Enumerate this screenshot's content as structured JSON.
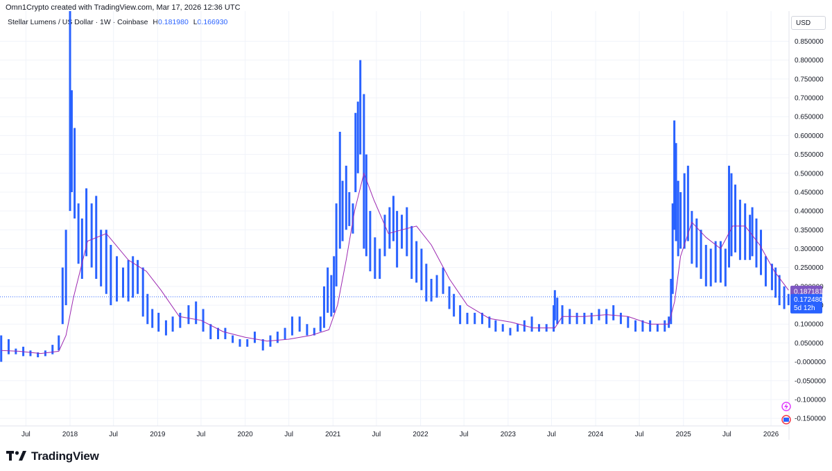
{
  "header": {
    "attribution": "Omn1Crypto created with TradingView.com, Mar 17, 2026 12:36 UTC",
    "symbol": "Stellar Lumens / US Dollar · 1W · Coinbase",
    "high_label": "H",
    "high_value": "0.181980",
    "low_label": "L",
    "low_value": "0.166930"
  },
  "currency": "USD",
  "brand": "TradingView",
  "colors": {
    "bar": "#2962ff",
    "ma_line": "#9c27b0",
    "grid": "#f0f3fa",
    "price_line": "#2962ff",
    "ma_label_bg": "#7e57c2"
  },
  "price_labels": {
    "ma": "0.187181",
    "last": "0.172480",
    "countdown": "5d 12h"
  },
  "chart_data": {
    "type": "bar",
    "style": "high-low weekly bars with moving average line",
    "x_ticks": [
      "Jul",
      "2018",
      "Jul",
      "2019",
      "Jul",
      "2020",
      "Jul",
      "2021",
      "Jul",
      "2022",
      "Jul",
      "2023",
      "Jul",
      "2024",
      "Jul",
      "2025",
      "Jul",
      "2026"
    ],
    "x_tick_dates": [
      "2017-07-01",
      "2018-01-01",
      "2018-07-01",
      "2019-01-01",
      "2019-07-01",
      "2020-01-01",
      "2020-07-01",
      "2021-01-01",
      "2021-07-01",
      "2022-01-01",
      "2022-07-01",
      "2023-01-01",
      "2023-07-01",
      "2024-01-01",
      "2024-07-01",
      "2025-01-01",
      "2025-07-01",
      "2026-01-01"
    ],
    "y_ticks": [
      "0.850000",
      "0.800000",
      "0.750000",
      "0.700000",
      "0.650000",
      "0.600000",
      "0.550000",
      "0.500000",
      "0.450000",
      "0.400000",
      "0.350000",
      "0.300000",
      "0.250000",
      "0.200000",
      "0.150000",
      "0.100000",
      "0.050000",
      "-0.000000",
      "-0.050000",
      "-0.100000",
      "-0.150000"
    ],
    "y_tick_values": [
      0.85,
      0.8,
      0.75,
      0.7,
      0.65,
      0.6,
      0.55,
      0.5,
      0.45,
      0.4,
      0.35,
      0.3,
      0.25,
      0.2,
      0.15,
      0.1,
      0.05,
      0.0,
      -0.05,
      -0.1,
      -0.15
    ],
    "x_range": [
      "2017-03-15",
      "2026-03-17"
    ],
    "ylim": [
      -0.17,
      0.93
    ],
    "grid": true,
    "last_price": 0.17248,
    "series": [
      {
        "kind": "high-low",
        "dates": [
          "2017-03-20",
          "2017-04-20",
          "2017-05-20",
          "2017-06-20",
          "2017-07-20",
          "2017-08-20",
          "2017-09-20",
          "2017-10-20",
          "2017-11-15",
          "2017-12-01",
          "2017-12-15",
          "2018-01-01",
          "2018-01-08",
          "2018-01-20",
          "2018-02-05",
          "2018-02-20",
          "2018-03-10",
          "2018-04-01",
          "2018-04-20",
          "2018-05-10",
          "2018-06-01",
          "2018-06-20",
          "2018-07-15",
          "2018-08-10",
          "2018-09-01",
          "2018-09-20",
          "2018-10-10",
          "2018-11-01",
          "2018-11-20",
          "2018-12-10",
          "2019-01-05",
          "2019-02-05",
          "2019-03-05",
          "2019-04-05",
          "2019-05-10",
          "2019-06-10",
          "2019-07-10",
          "2019-08-10",
          "2019-09-10",
          "2019-10-10",
          "2019-11-10",
          "2019-12-10",
          "2020-01-10",
          "2020-02-10",
          "2020-03-15",
          "2020-04-15",
          "2020-05-15",
          "2020-06-15",
          "2020-07-15",
          "2020-08-15",
          "2020-09-15",
          "2020-10-15",
          "2020-11-10",
          "2020-11-25",
          "2020-12-10",
          "2020-12-25",
          "2021-01-05",
          "2021-01-15",
          "2021-01-30",
          "2021-02-10",
          "2021-02-25",
          "2021-03-10",
          "2021-03-25",
          "2021-04-05",
          "2021-04-15",
          "2021-04-25",
          "2021-05-10",
          "2021-05-20",
          "2021-06-05",
          "2021-06-25",
          "2021-07-15",
          "2021-08-05",
          "2021-08-25",
          "2021-09-10",
          "2021-09-25",
          "2021-10-15",
          "2021-11-05",
          "2021-11-25",
          "2021-12-15",
          "2022-01-05",
          "2022-01-25",
          "2022-02-15",
          "2022-03-10",
          "2022-04-05",
          "2022-05-01",
          "2022-05-20",
          "2022-06-15",
          "2022-07-15",
          "2022-08-15",
          "2022-09-15",
          "2022-10-15",
          "2022-11-10",
          "2022-12-10",
          "2023-01-10",
          "2023-02-10",
          "2023-03-10",
          "2023-04-10",
          "2023-05-10",
          "2023-06-10",
          "2023-07-10",
          "2023-07-15",
          "2023-07-25",
          "2023-08-15",
          "2023-09-15",
          "2023-10-15",
          "2023-11-15",
          "2023-12-15",
          "2024-01-15",
          "2024-02-15",
          "2024-03-15",
          "2024-04-15",
          "2024-05-15",
          "2024-06-15",
          "2024-07-15",
          "2024-08-15",
          "2024-09-15",
          "2024-10-15",
          "2024-11-01",
          "2024-11-10",
          "2024-11-17",
          "2024-11-24",
          "2024-12-01",
          "2024-12-10",
          "2024-12-20",
          "2025-01-05",
          "2025-01-20",
          "2025-02-05",
          "2025-02-25",
          "2025-03-15",
          "2025-04-05",
          "2025-04-25",
          "2025-05-15",
          "2025-06-05",
          "2025-06-25",
          "2025-07-10",
          "2025-07-20",
          "2025-08-05",
          "2025-08-25",
          "2025-09-15",
          "2025-10-05",
          "2025-10-15",
          "2025-11-01",
          "2025-11-20",
          "2025-12-10",
          "2026-01-05",
          "2026-01-20",
          "2026-02-05",
          "2026-02-25",
          "2026-03-15"
        ],
        "high": [
          0.07,
          0.06,
          0.035,
          0.04,
          0.03,
          0.025,
          0.03,
          0.045,
          0.07,
          0.25,
          0.35,
          0.93,
          0.72,
          0.62,
          0.42,
          0.38,
          0.46,
          0.42,
          0.44,
          0.35,
          0.35,
          0.31,
          0.28,
          0.25,
          0.27,
          0.28,
          0.27,
          0.25,
          0.18,
          0.14,
          0.13,
          0.11,
          0.12,
          0.13,
          0.15,
          0.16,
          0.14,
          0.1,
          0.09,
          0.09,
          0.07,
          0.06,
          0.06,
          0.08,
          0.06,
          0.07,
          0.08,
          0.09,
          0.12,
          0.12,
          0.1,
          0.09,
          0.12,
          0.2,
          0.25,
          0.23,
          0.28,
          0.42,
          0.61,
          0.48,
          0.52,
          0.45,
          0.42,
          0.66,
          0.69,
          0.8,
          0.71,
          0.55,
          0.4,
          0.33,
          0.3,
          0.39,
          0.41,
          0.44,
          0.4,
          0.39,
          0.41,
          0.36,
          0.32,
          0.3,
          0.26,
          0.22,
          0.23,
          0.25,
          0.2,
          0.18,
          0.15,
          0.13,
          0.13,
          0.13,
          0.12,
          0.11,
          0.1,
          0.09,
          0.1,
          0.11,
          0.12,
          0.1,
          0.1,
          0.15,
          0.19,
          0.17,
          0.15,
          0.14,
          0.13,
          0.13,
          0.13,
          0.14,
          0.14,
          0.15,
          0.13,
          0.12,
          0.11,
          0.11,
          0.11,
          0.1,
          0.11,
          0.12,
          0.22,
          0.42,
          0.64,
          0.58,
          0.48,
          0.45,
          0.5,
          0.52,
          0.4,
          0.38,
          0.35,
          0.31,
          0.3,
          0.32,
          0.32,
          0.3,
          0.52,
          0.5,
          0.47,
          0.43,
          0.42,
          0.39,
          0.41,
          0.38,
          0.35,
          0.28,
          0.26,
          0.25,
          0.23,
          0.2,
          0.18
        ],
        "low": [
          0.0,
          0.02,
          0.02,
          0.015,
          0.015,
          0.012,
          0.015,
          0.02,
          0.03,
          0.1,
          0.15,
          0.4,
          0.45,
          0.38,
          0.26,
          0.22,
          0.28,
          0.25,
          0.22,
          0.2,
          0.18,
          0.15,
          0.16,
          0.17,
          0.16,
          0.17,
          0.18,
          0.12,
          0.1,
          0.09,
          0.08,
          0.07,
          0.08,
          0.09,
          0.1,
          0.1,
          0.08,
          0.06,
          0.06,
          0.06,
          0.05,
          0.04,
          0.04,
          0.05,
          0.03,
          0.04,
          0.05,
          0.06,
          0.07,
          0.08,
          0.07,
          0.07,
          0.08,
          0.09,
          0.13,
          0.12,
          0.13,
          0.2,
          0.3,
          0.32,
          0.35,
          0.36,
          0.34,
          0.45,
          0.5,
          0.55,
          0.3,
          0.28,
          0.24,
          0.22,
          0.22,
          0.28,
          0.3,
          0.32,
          0.25,
          0.3,
          0.28,
          0.22,
          0.21,
          0.19,
          0.16,
          0.16,
          0.17,
          0.18,
          0.14,
          0.12,
          0.1,
          0.1,
          0.1,
          0.1,
          0.09,
          0.08,
          0.08,
          0.07,
          0.08,
          0.08,
          0.08,
          0.08,
          0.08,
          0.08,
          0.11,
          0.1,
          0.1,
          0.1,
          0.1,
          0.1,
          0.1,
          0.11,
          0.1,
          0.11,
          0.1,
          0.09,
          0.08,
          0.08,
          0.08,
          0.08,
          0.08,
          0.09,
          0.1,
          0.18,
          0.35,
          0.32,
          0.28,
          0.3,
          0.3,
          0.32,
          0.26,
          0.25,
          0.22,
          0.2,
          0.2,
          0.21,
          0.21,
          0.2,
          0.25,
          0.28,
          0.29,
          0.27,
          0.27,
          0.27,
          0.28,
          0.25,
          0.23,
          0.2,
          0.19,
          0.17,
          0.15,
          0.14,
          0.15
        ]
      },
      {
        "kind": "ma",
        "dates": [
          "2017-03-20",
          "2017-06-01",
          "2017-09-01",
          "2017-11-15",
          "2017-12-15",
          "2018-01-15",
          "2018-03-15",
          "2018-06-01",
          "2018-09-01",
          "2018-11-15",
          "2019-01-15",
          "2019-04-01",
          "2019-07-01",
          "2019-10-01",
          "2020-01-01",
          "2020-04-01",
          "2020-07-01",
          "2020-10-01",
          "2020-12-15",
          "2021-01-20",
          "2021-02-25",
          "2021-04-01",
          "2021-05-10",
          "2021-06-20",
          "2021-08-20",
          "2021-10-15",
          "2021-12-15",
          "2022-02-15",
          "2022-05-01",
          "2022-07-15",
          "2022-10-15",
          "2023-01-15",
          "2023-04-15",
          "2023-07-15",
          "2023-08-15",
          "2023-11-15",
          "2024-02-15",
          "2024-05-15",
          "2024-08-15",
          "2024-11-01",
          "2024-11-25",
          "2024-12-20",
          "2025-02-05",
          "2025-04-05",
          "2025-06-05",
          "2025-07-25",
          "2025-09-15",
          "2025-11-15",
          "2026-01-15",
          "2026-03-15"
        ],
        "values": [
          0.03,
          0.028,
          0.022,
          0.028,
          0.07,
          0.17,
          0.32,
          0.34,
          0.27,
          0.24,
          0.19,
          0.12,
          0.11,
          0.08,
          0.065,
          0.055,
          0.06,
          0.07,
          0.085,
          0.15,
          0.27,
          0.4,
          0.5,
          0.43,
          0.34,
          0.35,
          0.36,
          0.31,
          0.22,
          0.15,
          0.115,
          0.105,
          0.09,
          0.09,
          0.12,
          0.12,
          0.125,
          0.12,
          0.1,
          0.1,
          0.16,
          0.28,
          0.37,
          0.33,
          0.3,
          0.36,
          0.36,
          0.31,
          0.24,
          0.19
        ]
      }
    ]
  }
}
